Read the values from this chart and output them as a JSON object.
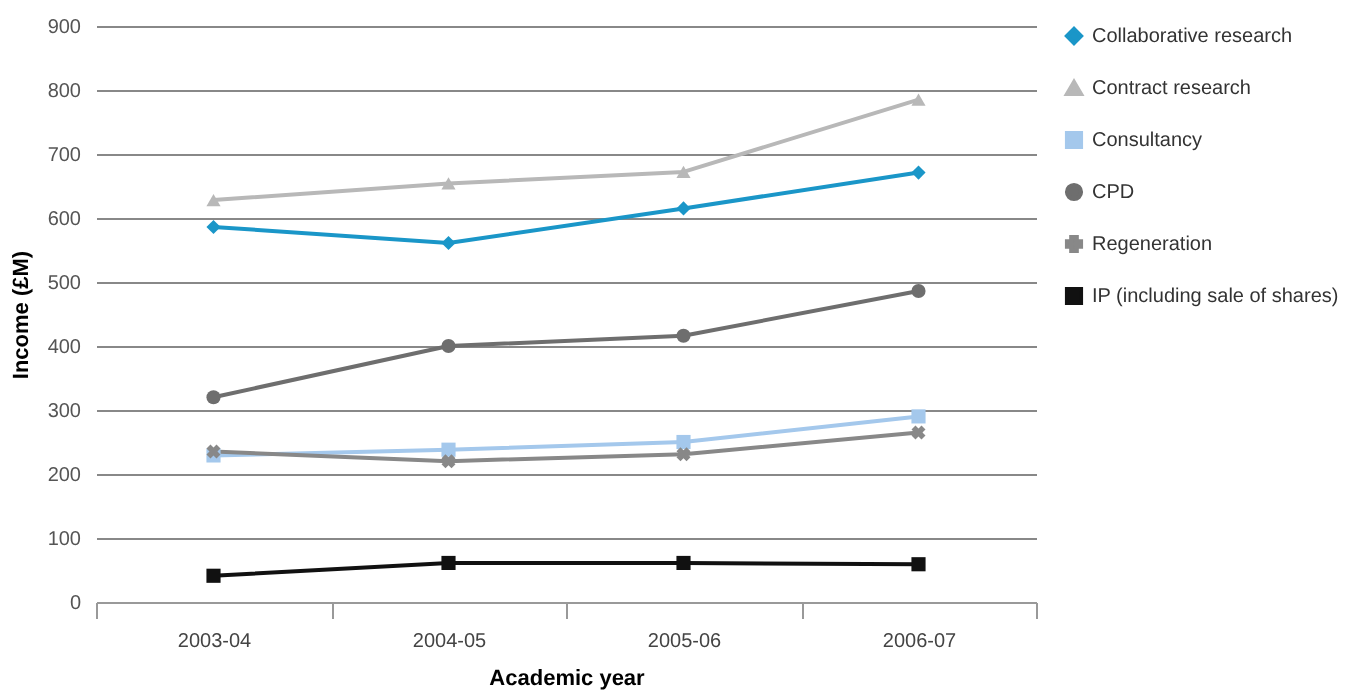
{
  "chart_data": {
    "type": "line",
    "xlabel": "Academic year",
    "ylabel": "Income (£M)",
    "categories": [
      "2003-04",
      "2004-05",
      "2005-06",
      "2006-07"
    ],
    "ylim": [
      0,
      900
    ],
    "yticks": [
      0,
      100,
      200,
      300,
      400,
      500,
      600,
      700,
      800,
      900
    ],
    "grid": "y",
    "legend": "right",
    "series": [
      {
        "name": "Collaborative research",
        "color": "#1a96c8",
        "marker": "diamond",
        "values": [
          586,
          561,
          615,
          671
        ]
      },
      {
        "name": "Contract research",
        "color": "#b8b8b8",
        "marker": "triangle",
        "values": [
          628,
          654,
          672,
          785
        ]
      },
      {
        "name": "Consultancy",
        "color": "#a4c8ec",
        "marker": "square",
        "values": [
          229,
          238,
          250,
          290
        ]
      },
      {
        "name": "CPD",
        "color": "#6e6e6e",
        "marker": "circle",
        "values": [
          320,
          400,
          416,
          486
        ]
      },
      {
        "name": "Regeneration",
        "color": "#888888",
        "marker": "cross",
        "values": [
          235,
          220,
          231,
          265
        ]
      },
      {
        "name": "IP (including sale of shares)",
        "color": "#111111",
        "marker": "square",
        "values": [
          41,
          61,
          61,
          59
        ]
      }
    ]
  }
}
